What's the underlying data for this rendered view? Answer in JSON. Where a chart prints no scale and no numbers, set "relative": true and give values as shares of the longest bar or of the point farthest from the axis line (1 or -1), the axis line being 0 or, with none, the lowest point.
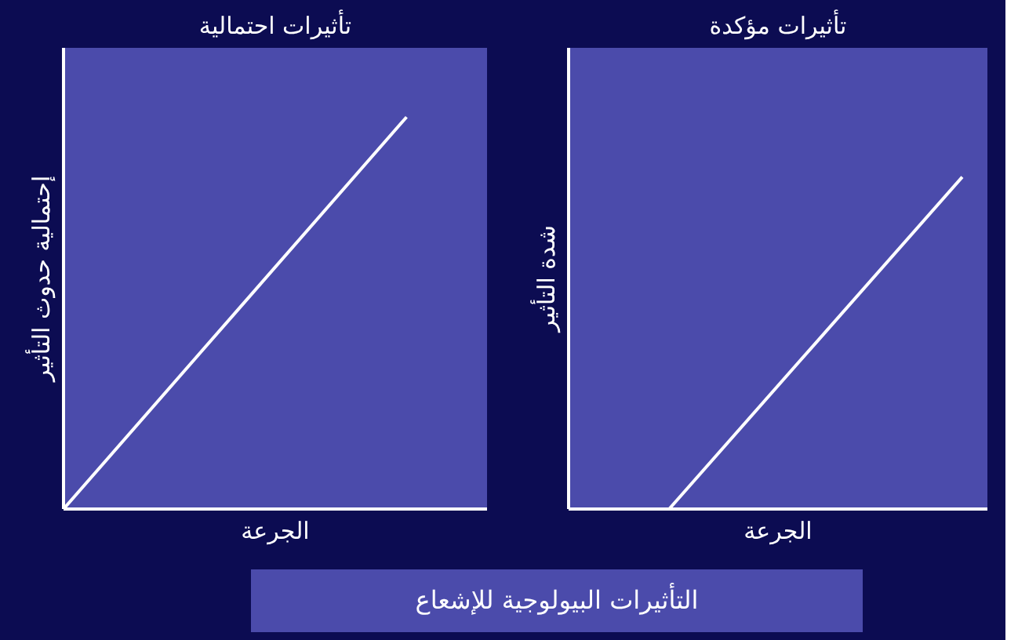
{
  "chart_data": [
    {
      "type": "line",
      "title": "تأثيرات احتمالية",
      "xlabel": "الجرعة",
      "ylabel": "إحتمالية حدوث التأثير",
      "relative": true,
      "categories": [
        null,
        null,
        null
      ],
      "series": [
        {
          "color": "#ffffff",
          "values": [
            0,
            0.5,
            1
          ]
        }
      ]
    },
    {
      "type": "line",
      "title": "تأثيرات مؤكدة",
      "xlabel": "الجرعة",
      "ylabel": "شدة التأثير",
      "relative": true,
      "categories": [
        null,
        null,
        null
      ],
      "series": [
        {
          "color": "#ffffff",
          "values": [
            0,
            0.5,
            1
          ]
        }
      ]
    },
    {
      "type": "other",
      "title": "التأثيرات البيولوجية للإشعاع"
    }
  ]
}
